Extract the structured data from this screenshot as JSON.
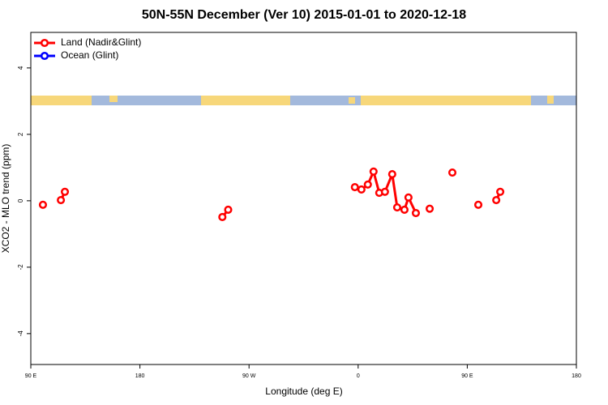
{
  "chart_data": {
    "type": "line",
    "title": "50N-55N December (Ver 10)   2015-01-01 to 2020-12-18",
    "x_label": "Longitude (deg E)",
    "y_label": "XCO2 - MLO trend (ppm)",
    "xlim": [
      -270,
      180
    ],
    "xticks": [
      {
        "value": -270,
        "label": "90 E"
      },
      {
        "value": -180,
        "label": "180"
      },
      {
        "value": -90,
        "label": "90 W"
      },
      0,
      {
        "value": 90,
        "label": "90 E"
      },
      180
    ],
    "ylim": [
      -4.93,
      5.07
    ],
    "yticks": [
      -4,
      -2,
      0,
      2,
      4
    ],
    "legend": "upper left",
    "series": [
      {
        "name": "Land (Nadir&Glint)",
        "color": "#ff0000",
        "x": [
          -260,
          null,
          -245.2,
          -241.9,
          null,
          -112,
          -107.2,
          null,
          -2.7,
          2.7,
          8,
          12.7,
          17.4,
          22.1,
          28.1,
          32.2,
          38.2,
          41.5,
          47.6,
          null,
          59,
          null,
          77.7,
          null,
          99.1,
          null,
          113.9,
          117.2
        ],
        "values": [
          -0.12,
          null,
          0.02,
          0.27,
          null,
          -0.49,
          -0.27,
          null,
          0.41,
          0.34,
          0.49,
          0.88,
          0.24,
          0.27,
          0.8,
          -0.2,
          -0.27,
          0.1,
          -0.37,
          null,
          -0.24,
          null,
          0.85,
          null,
          -0.12,
          null,
          0.02,
          0.27
        ]
      },
      {
        "name": "Ocean (Glint)",
        "color": "#0000ff",
        "x": [],
        "values": []
      }
    ]
  }
}
